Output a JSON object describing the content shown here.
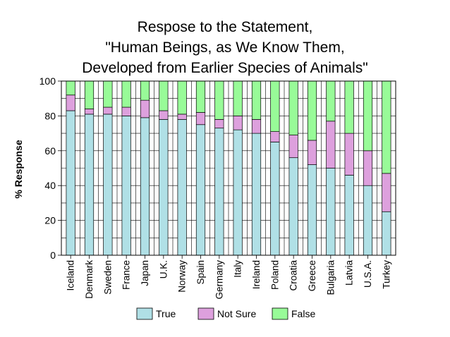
{
  "chart_data": {
    "type": "bar",
    "stacked": true,
    "title_lines": [
      "Respose to the Statement,",
      "\"Human Beings, as We Know Them,",
      "Developed from Earlier Species of Animals\""
    ],
    "xlabel": "",
    "ylabel": "% Response",
    "ylim": [
      0,
      100
    ],
    "yticks": [
      "0",
      "20",
      "40",
      "60",
      "80",
      "100"
    ],
    "grid": true,
    "categories": [
      "Iceland",
      "Denmark",
      "Sweden",
      "France",
      "Japan",
      "U.K.",
      "Norway",
      "Spain",
      "Germany",
      "Italy",
      "Ireland",
      "Poland",
      "Croatia",
      "Greece",
      "Bulgaria",
      "Latvia",
      "U.S.A.",
      "Turkey"
    ],
    "series": [
      {
        "name": "True",
        "color": "#b0e0e6",
        "values": [
          83,
          81,
          81,
          80,
          79,
          78,
          78,
          75,
          73,
          72,
          70,
          65,
          56,
          52,
          50,
          46,
          40,
          25
        ]
      },
      {
        "name": "Not Sure",
        "color": "#dda0dd",
        "values": [
          9,
          3,
          4,
          5,
          10,
          5,
          3,
          7,
          5,
          8,
          8,
          6,
          13,
          14,
          27,
          24,
          20,
          22
        ]
      },
      {
        "name": "False",
        "color": "#98fb98",
        "values": [
          8,
          16,
          15,
          15,
          11,
          17,
          19,
          18,
          22,
          20,
          22,
          29,
          31,
          34,
          23,
          30,
          40,
          53
        ]
      }
    ],
    "legend_position": "bottom"
  }
}
